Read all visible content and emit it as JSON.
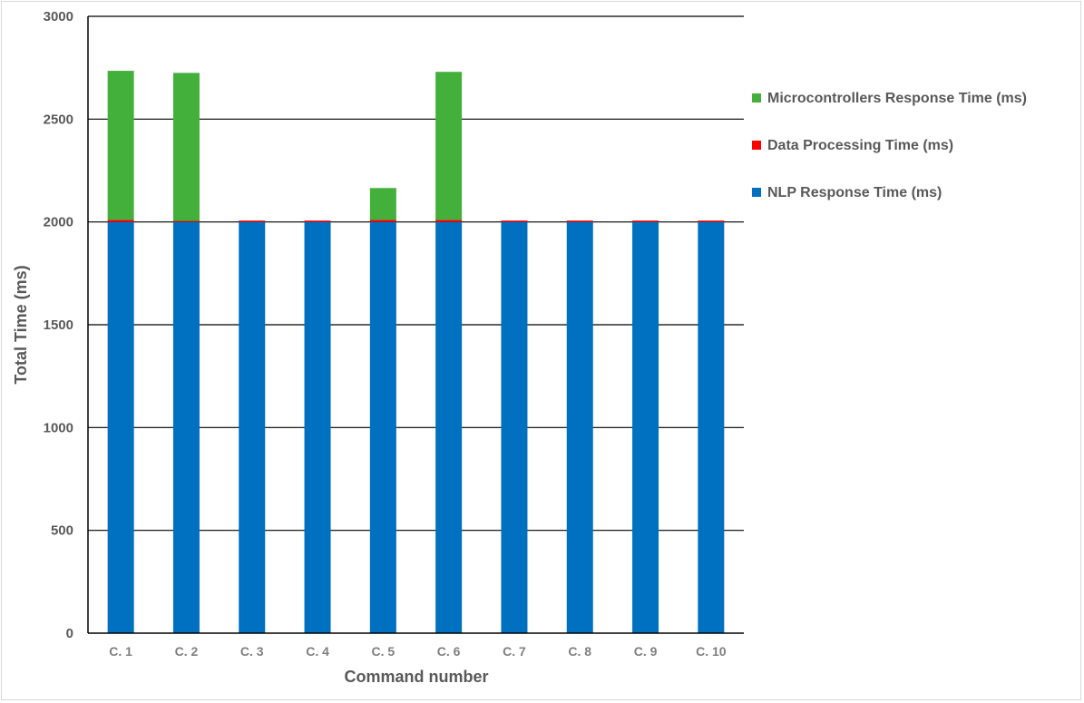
{
  "chart_data": {
    "type": "bar",
    "stacked": true,
    "title": "",
    "xlabel": "Command number",
    "ylabel": "Total Time (ms)",
    "ylim": [
      0,
      3000
    ],
    "yticks": [
      0,
      500,
      1000,
      1500,
      2000,
      2500,
      3000
    ],
    "grid": true,
    "legend_position": "right",
    "categories": [
      "C. 1",
      "C. 2",
      "C. 3",
      "C. 4",
      "C. 5",
      "C. 6",
      "C. 7",
      "C. 8",
      "C. 9",
      "C. 10"
    ],
    "series": [
      {
        "name": "NLP Response Time (ms)",
        "color": "#0070c0",
        "values": [
          2000,
          2000,
          2000,
          2000,
          2000,
          2000,
          2000,
          2000,
          2000,
          2000
        ]
      },
      {
        "name": "Data Processing Time (ms)",
        "color": "#ff0000",
        "values": [
          10,
          5,
          5,
          5,
          10,
          10,
          5,
          5,
          5,
          5
        ]
      },
      {
        "name": "Microcontrollers Response Time (ms)",
        "color": "#44b03c",
        "values": [
          725,
          720,
          0,
          0,
          155,
          720,
          0,
          0,
          0,
          0
        ]
      }
    ],
    "legend_order": [
      "Microcontrollers Response Time (ms)",
      "Data Processing Time (ms)",
      "NLP Response Time (ms)"
    ]
  }
}
